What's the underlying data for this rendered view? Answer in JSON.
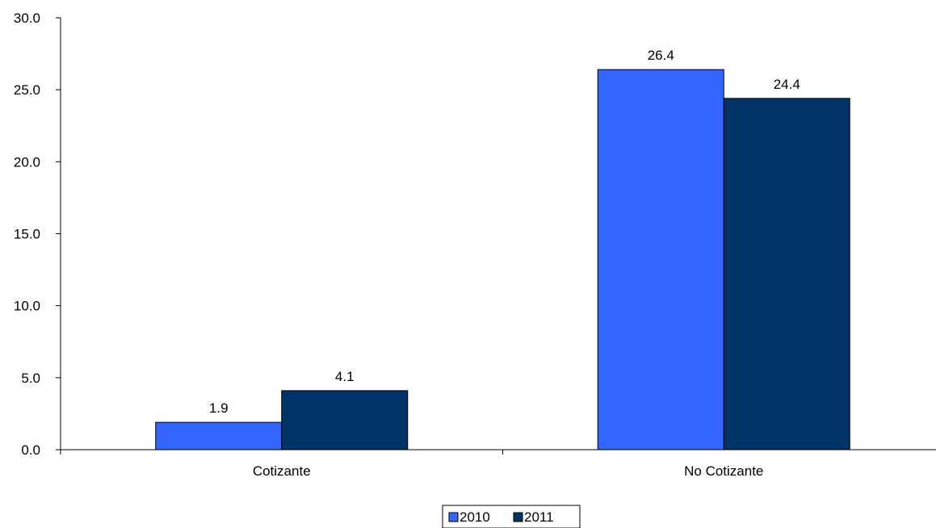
{
  "chart_data": {
    "type": "bar",
    "title": "",
    "xlabel": "",
    "ylabel": "",
    "categories": [
      "Cotizante",
      "No Cotizante"
    ],
    "series": [
      {
        "name": "2010",
        "values": [
          1.9,
          26.4
        ],
        "labels": [
          "1.9",
          "26.4"
        ],
        "color": "#3366FF"
      },
      {
        "name": "2011",
        "values": [
          4.1,
          24.4
        ],
        "labels": [
          "4.1",
          "24.4"
        ],
        "color": "#003366"
      }
    ],
    "ylim": [
      0,
      30
    ],
    "yticks": [
      0,
      5,
      10,
      15,
      20,
      25,
      30
    ],
    "ytick_labels": [
      "0.0",
      "5.0",
      "10.0",
      "15.0",
      "20.0",
      "25.0",
      "30.0"
    ],
    "grid": false,
    "legend_position": "bottom"
  }
}
